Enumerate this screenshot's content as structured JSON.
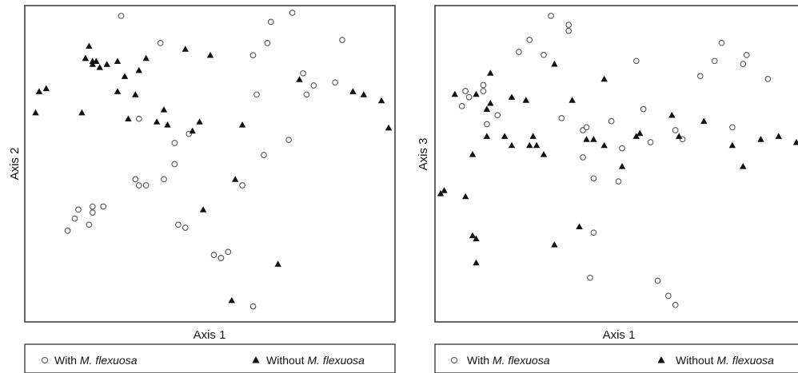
{
  "legend": {
    "with_label": "With",
    "without_label": "Without",
    "species": "M. flexuosa"
  },
  "chart_data": [
    {
      "type": "scatter",
      "xlabel": "Axis 1",
      "ylabel": "Axis 2",
      "grid": false,
      "legend": "bottom",
      "series": [
        {
          "marker": "circle",
          "points": [
            [
              0.25,
              0.99
            ],
            [
              0.1,
              0.28
            ],
            [
              0.12,
              0.32
            ],
            [
              0.13,
              0.35
            ],
            [
              0.16,
              0.3
            ],
            [
              0.17,
              0.36
            ],
            [
              0.17,
              0.34
            ],
            [
              0.2,
              0.36
            ],
            [
              0.29,
              0.45
            ],
            [
              0.3,
              0.65
            ],
            [
              0.32,
              0.43
            ],
            [
              0.3,
              0.43
            ],
            [
              0.37,
              0.45
            ],
            [
              0.4,
              0.5
            ],
            [
              0.41,
              0.3
            ],
            [
              0.4,
              0.57
            ],
            [
              0.43,
              0.29
            ],
            [
              0.44,
              0.6
            ],
            [
              0.36,
              0.9
            ],
            [
              0.51,
              0.2
            ],
            [
              0.53,
              0.19
            ],
            [
              0.53,
              0.19
            ],
            [
              0.55,
              0.21
            ],
            [
              0.59,
              0.43
            ],
            [
              0.62,
              0.03
            ],
            [
              0.62,
              0.86
            ],
            [
              0.63,
              0.73
            ],
            [
              0.65,
              0.53
            ],
            [
              0.66,
              0.9
            ],
            [
              0.67,
              0.97
            ],
            [
              0.72,
              0.58
            ],
            [
              0.73,
              1.0
            ],
            [
              0.76,
              0.8
            ],
            [
              0.77,
              0.73
            ],
            [
              0.79,
              0.76
            ],
            [
              0.85,
              0.77
            ],
            [
              0.87,
              0.91
            ]
          ]
        },
        {
          "marker": "triangle",
          "points": [
            [
              0.01,
              0.67
            ],
            [
              0.02,
              0.74
            ],
            [
              0.04,
              0.75
            ],
            [
              0.15,
              0.85
            ],
            [
              0.14,
              0.67
            ],
            [
              0.15,
              0.85
            ],
            [
              0.16,
              0.89
            ],
            [
              0.17,
              0.84
            ],
            [
              0.17,
              0.83
            ],
            [
              0.18,
              0.84
            ],
            [
              0.19,
              0.82
            ],
            [
              0.21,
              0.83
            ],
            [
              0.24,
              0.84
            ],
            [
              0.24,
              0.74
            ],
            [
              0.26,
              0.79
            ],
            [
              0.27,
              0.65
            ],
            [
              0.29,
              0.73
            ],
            [
              0.3,
              0.81
            ],
            [
              0.32,
              0.85
            ],
            [
              0.35,
              0.64
            ],
            [
              0.37,
              0.68
            ],
            [
              0.38,
              0.63
            ],
            [
              0.43,
              0.88
            ],
            [
              0.45,
              0.61
            ],
            [
              0.47,
              0.64
            ],
            [
              0.48,
              0.35
            ],
            [
              0.5,
              0.86
            ],
            [
              0.56,
              0.05
            ],
            [
              0.57,
              0.45
            ],
            [
              0.59,
              0.63
            ],
            [
              0.69,
              0.17
            ],
            [
              0.75,
              0.78
            ],
            [
              0.9,
              0.74
            ],
            [
              0.93,
              0.73
            ],
            [
              0.98,
              0.71
            ],
            [
              1.0,
              0.62
            ]
          ]
        }
      ]
    },
    {
      "type": "scatter",
      "xlabel": "Axis 1",
      "ylabel": "Axis 3",
      "grid": false,
      "legend": "bottom",
      "series": [
        {
          "marker": "circle",
          "points": [
            [
              0.06,
              0.69
            ],
            [
              0.07,
              0.74
            ],
            [
              0.08,
              0.72
            ],
            [
              0.12,
              0.76
            ],
            [
              0.12,
              0.74
            ],
            [
              0.13,
              0.63
            ],
            [
              0.16,
              0.66
            ],
            [
              0.22,
              0.87
            ],
            [
              0.25,
              0.91
            ],
            [
              0.29,
              0.86
            ],
            [
              0.31,
              0.99
            ],
            [
              0.34,
              0.65
            ],
            [
              0.36,
              0.94
            ],
            [
              0.36,
              0.96
            ],
            [
              0.42,
              0.12
            ],
            [
              0.4,
              0.61
            ],
            [
              0.4,
              0.52
            ],
            [
              0.41,
              0.62
            ],
            [
              0.43,
              0.27
            ],
            [
              0.43,
              0.45
            ],
            [
              0.48,
              0.64
            ],
            [
              0.5,
              0.44
            ],
            [
              0.51,
              0.55
            ],
            [
              0.55,
              0.84
            ],
            [
              0.57,
              0.68
            ],
            [
              0.59,
              0.57
            ],
            [
              0.61,
              0.11
            ],
            [
              0.64,
              0.06
            ],
            [
              0.66,
              0.03
            ],
            [
              0.66,
              0.61
            ],
            [
              0.68,
              0.58
            ],
            [
              0.73,
              0.79
            ],
            [
              0.77,
              0.84
            ],
            [
              0.79,
              0.9
            ],
            [
              0.82,
              0.62
            ],
            [
              0.85,
              0.83
            ],
            [
              0.86,
              0.86
            ],
            [
              0.92,
              0.78
            ]
          ]
        },
        {
          "marker": "triangle",
          "points": [
            [
              0.0,
              0.4
            ],
            [
              0.01,
              0.41
            ],
            [
              0.04,
              0.73
            ],
            [
              0.07,
              0.39
            ],
            [
              0.09,
              0.53
            ],
            [
              0.09,
              0.26
            ],
            [
              0.1,
              0.25
            ],
            [
              0.1,
              0.17
            ],
            [
              0.1,
              0.73
            ],
            [
              0.13,
              0.68
            ],
            [
              0.13,
              0.59
            ],
            [
              0.14,
              0.7
            ],
            [
              0.14,
              0.8
            ],
            [
              0.18,
              0.59
            ],
            [
              0.2,
              0.72
            ],
            [
              0.2,
              0.56
            ],
            [
              0.24,
              0.71
            ],
            [
              0.25,
              0.56
            ],
            [
              0.26,
              0.59
            ],
            [
              0.27,
              0.56
            ],
            [
              0.29,
              0.53
            ],
            [
              0.32,
              0.23
            ],
            [
              0.32,
              0.83
            ],
            [
              0.37,
              0.71
            ],
            [
              0.39,
              0.29
            ],
            [
              0.41,
              0.58
            ],
            [
              0.43,
              0.58
            ],
            [
              0.46,
              0.78
            ],
            [
              0.46,
              0.56
            ],
            [
              0.51,
              0.49
            ],
            [
              0.55,
              0.59
            ],
            [
              0.56,
              0.6
            ],
            [
              0.65,
              0.66
            ],
            [
              0.67,
              0.59
            ],
            [
              0.74,
              0.64
            ],
            [
              0.82,
              0.56
            ],
            [
              0.85,
              0.49
            ],
            [
              0.9,
              0.58
            ],
            [
              0.95,
              0.59
            ],
            [
              1.0,
              0.57
            ]
          ]
        }
      ]
    }
  ]
}
